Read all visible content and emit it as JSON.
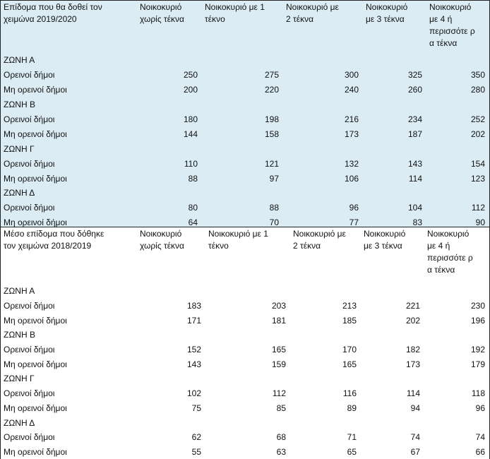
{
  "table_2019_2020": {
    "header": {
      "label": [
        "Επίδομα που θα δοθεί τον",
        "χειμώνα 2019/2020"
      ],
      "c1": [
        "Νοικοκυριό",
        "χωρίς τέκνα"
      ],
      "c2": [
        "Νοικοκυριό με 1",
        "τέκνο"
      ],
      "c3": [
        "Νοικοκυριό με",
        "2 τέκνα"
      ],
      "c4": [
        "Νοικοκυριό",
        "με 3 τέκνα"
      ],
      "c5": [
        "Νοικοκυριό",
        "με 4 ή",
        "περισσότε ρ",
        "α τέκνα"
      ]
    },
    "rows": [
      {
        "label": "ΖΩΝΗ Α",
        "v": [
          "",
          "",
          "",
          "",
          ""
        ]
      },
      {
        "label": "Ορεινοί δήμοι",
        "v": [
          "250",
          "275",
          "300",
          "325",
          "350"
        ]
      },
      {
        "label": "Μη ορεινοί δήμοι",
        "v": [
          "200",
          "220",
          "240",
          "260",
          "280"
        ]
      },
      {
        "label": "ΖΩΝΗ Β",
        "v": [
          "",
          "",
          "",
          "",
          ""
        ]
      },
      {
        "label": "Ορεινοί δήμοι",
        "v": [
          "180",
          "198",
          "216",
          "234",
          "252"
        ]
      },
      {
        "label": "Μη ορεινοί δήμοι",
        "v": [
          "144",
          "158",
          "173",
          "187",
          "202"
        ]
      },
      {
        "label": "ΖΩΝΗ Γ",
        "v": [
          "",
          "",
          "",
          "",
          ""
        ]
      },
      {
        "label": "Ορεινοί δήμοι",
        "v": [
          "110",
          "121",
          "132",
          "143",
          "154"
        ]
      },
      {
        "label": "Μη ορεινοί δήμοι",
        "v": [
          "88",
          "97",
          "106",
          "114",
          "123"
        ]
      },
      {
        "label": "ΖΩΝΗ Δ",
        "v": [
          "",
          "",
          "",
          "",
          ""
        ]
      },
      {
        "label": "Ορεινοί δήμοι",
        "v": [
          "80",
          "88",
          "96",
          "104",
          "112"
        ]
      },
      {
        "label": "Μη ορεινοί δήμοι",
        "v": [
          "64",
          "70",
          "77",
          "83",
          "90"
        ]
      }
    ]
  },
  "table_2018_2019": {
    "header": {
      "label": [
        "Μέσο επίδομα που δόθηκε",
        "τον χειμώνα 2018/2019"
      ],
      "c1": [
        "Νοικοκυριό",
        "χωρίς τέκνα"
      ],
      "c2": [
        "Νοικοκυριό με 1",
        "τέκνο"
      ],
      "c3": [
        "Νοικοκυριό με",
        "2 τέκνα"
      ],
      "c4": [
        "Νοικοκυριό",
        "με 3 τέκνα"
      ],
      "c5": [
        "Νοικοκυριό",
        "με 4 ή",
        "περισσότε ρ",
        "α τέκνα"
      ]
    },
    "rows": [
      {
        "label": "ΖΩΝΗ Α",
        "v": [
          "",
          "",
          "",
          "",
          ""
        ]
      },
      {
        "label": "Ορεινοί δήμοι",
        "v": [
          "183",
          "203",
          "213",
          "221",
          "230"
        ]
      },
      {
        "label": "Μη ορεινοί δήμοι",
        "v": [
          "171",
          "181",
          "185",
          "202",
          "196"
        ]
      },
      {
        "label": "ΖΩΝΗ Β",
        "v": [
          "",
          "",
          "",
          "",
          ""
        ]
      },
      {
        "label": "Ορεινοί δήμοι",
        "v": [
          "152",
          "165",
          "170",
          "182",
          "192"
        ]
      },
      {
        "label": "Μη ορεινοί δήμοι",
        "v": [
          "143",
          "159",
          "165",
          "173",
          "179"
        ]
      },
      {
        "label": "ΖΩΝΗ Γ",
        "v": [
          "",
          "",
          "",
          "",
          ""
        ]
      },
      {
        "label": "Ορεινοί δήμοι",
        "v": [
          "102",
          "112",
          "116",
          "114",
          "118"
        ]
      },
      {
        "label": "Μη ορεινοί δήμοι",
        "v": [
          "75",
          "85",
          "89",
          "94",
          "96"
        ]
      },
      {
        "label": "ΖΩΝΗ Δ",
        "v": [
          "",
          "",
          "",
          "",
          ""
        ]
      },
      {
        "label": "Ορεινοί δήμοι",
        "v": [
          "62",
          "68",
          "71",
          "74",
          "74"
        ]
      },
      {
        "label": "Μη ορεινοί δήμοι",
        "v": [
          "55",
          "63",
          "65",
          "67",
          "66"
        ]
      }
    ]
  },
  "colors": {
    "top_table_background": "#dcecf5",
    "bottom_table_background": "#ffffff",
    "border": "#222222"
  }
}
